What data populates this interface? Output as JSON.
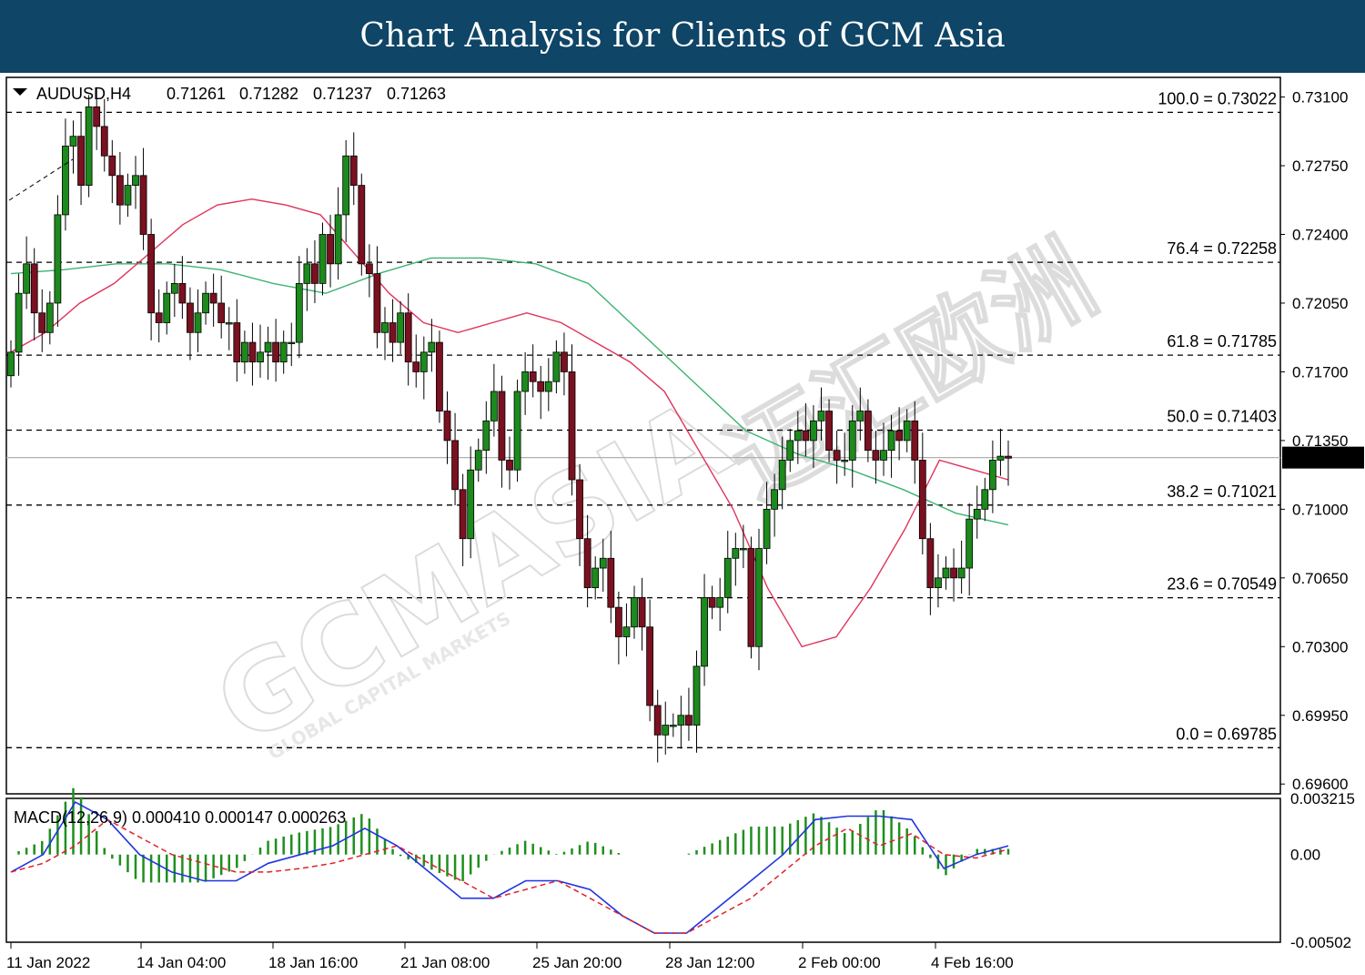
{
  "header": {
    "title": "Chart Analysis for Clients of GCM Asia"
  },
  "symbol_info": {
    "symbol": "AUDUSD,H4",
    "open": "0.71261",
    "high": "0.71282",
    "low": "0.71237",
    "close": "0.71263"
  },
  "current_price_label": "0.71263",
  "watermark": {
    "brand": "GCMASIA",
    "tagline": "GLOBAL CAPITAL MARKETS",
    "chinese": "迈汇欧洲"
  },
  "colors": {
    "bull": "#1c8a1c",
    "bear": "#7a1020",
    "ma_fast": "#e0335a",
    "ma_slow": "#3cb371",
    "macd_line": "#1f35e0",
    "signal_line": "#e0202a",
    "histogram": "#1f8f1f",
    "banner": "#0f4566"
  },
  "chart_data": {
    "type": "candlestick",
    "title": "AUDUSD,H4",
    "price_axis": {
      "range": [
        0.6955,
        0.732
      ],
      "ticks": [
        "0.73100",
        "0.72750",
        "0.72400",
        "0.72050",
        "0.71700",
        "0.71350",
        "0.71000",
        "0.70650",
        "0.70300",
        "0.69950",
        "0.69600"
      ]
    },
    "time_axis": {
      "labels": [
        "11 Jan 2022",
        "14 Jan 04:00",
        "18 Jan 16:00",
        "21 Jan 08:00",
        "25 Jan 20:00",
        "28 Jan 12:00",
        "2 Feb 00:00",
        "4 Feb 16:00"
      ]
    },
    "fibonacci": [
      {
        "level": "100.0",
        "price": 0.73022,
        "label": "100.0 = 0.73022"
      },
      {
        "level": "76.4",
        "price": 0.72258,
        "label": "76.4 = 0.72258"
      },
      {
        "level": "61.8",
        "price": 0.71785,
        "label": "61.8 = 0.71785"
      },
      {
        "level": "50.0",
        "price": 0.71403,
        "label": "50.0 = 0.71403"
      },
      {
        "level": "38.2",
        "price": 0.71021,
        "label": "38.2 = 0.71021"
      },
      {
        "level": "23.6",
        "price": 0.70549,
        "label": "23.6 = 0.70549"
      },
      {
        "level": "0.0",
        "price": 0.69785,
        "label": "0.0 = 0.69785"
      }
    ],
    "current_price": 0.71263,
    "closes": [
      0.718,
      0.721,
      0.7225,
      0.72,
      0.719,
      0.7205,
      0.725,
      0.7285,
      0.729,
      0.7265,
      0.7305,
      0.7295,
      0.728,
      0.727,
      0.7255,
      0.7265,
      0.727,
      0.724,
      0.72,
      0.7195,
      0.721,
      0.7215,
      0.7205,
      0.719,
      0.72,
      0.721,
      0.7205,
      0.7195,
      0.7195,
      0.7175,
      0.7185,
      0.7175,
      0.718,
      0.7185,
      0.7175,
      0.7185,
      0.7185,
      0.7215,
      0.7225,
      0.7215,
      0.724,
      0.7225,
      0.725,
      0.728,
      0.7265,
      0.7225,
      0.722,
      0.719,
      0.7195,
      0.7185,
      0.72,
      0.7175,
      0.717,
      0.718,
      0.7185,
      0.715,
      0.7135,
      0.711,
      0.7085,
      0.712,
      0.713,
      0.7145,
      0.716,
      0.7125,
      0.712,
      0.716,
      0.717,
      0.7165,
      0.716,
      0.7165,
      0.718,
      0.717,
      0.7115,
      0.7085,
      0.706,
      0.707,
      0.7075,
      0.705,
      0.7035,
      0.704,
      0.7055,
      0.704,
      0.7,
      0.6985,
      0.699,
      0.699,
      0.6995,
      0.699,
      0.702,
      0.7055,
      0.705,
      0.7055,
      0.7075,
      0.708,
      0.708,
      0.703,
      0.708,
      0.71,
      0.711,
      0.7125,
      0.7135,
      0.714,
      0.7135,
      0.7145,
      0.715,
      0.713,
      0.7125,
      0.7125,
      0.7145,
      0.715,
      0.713,
      0.7125,
      0.713,
      0.714,
      0.7135,
      0.7145,
      0.7125,
      0.7085,
      0.706,
      0.7065,
      0.707,
      0.7065,
      0.707,
      0.7095,
      0.71,
      0.711,
      0.7125,
      0.7127,
      0.7126
    ],
    "ma_fast": [
      0.718,
      0.719,
      0.7205,
      0.7215,
      0.723,
      0.7245,
      0.7255,
      0.7258,
      0.7255,
      0.725,
      0.723,
      0.721,
      0.7195,
      0.719,
      0.7195,
      0.72,
      0.7195,
      0.7185,
      0.7175,
      0.716,
      0.713,
      0.71,
      0.706,
      0.703,
      0.7035,
      0.706,
      0.709,
      0.7125,
      0.712,
      0.7115
    ],
    "ma_slow": [
      0.722,
      0.7222,
      0.7225,
      0.7225,
      0.7222,
      0.7215,
      0.721,
      0.722,
      0.7228,
      0.7228,
      0.7225,
      0.7215,
      0.719,
      0.7165,
      0.714,
      0.7128,
      0.712,
      0.711,
      0.7098,
      0.7092
    ],
    "macd": {
      "label": "MACD(12,26,9) 0.000410 0.000147 0.000263",
      "range": [
        -0.00502,
        0.003215
      ],
      "ticks": [
        "0.003215",
        "0.00",
        "-0.00502"
      ],
      "macd_line": [
        -0.001,
        0.0,
        0.003,
        0.002,
        0.0,
        -0.001,
        -0.0015,
        -0.0015,
        -0.0005,
        0.0,
        0.0005,
        0.0015,
        0.0005,
        -0.001,
        -0.0025,
        -0.0025,
        -0.0015,
        -0.0015,
        -0.002,
        -0.0035,
        -0.0045,
        -0.0045,
        -0.003,
        -0.0015,
        0.0,
        0.002,
        0.0022,
        0.0022,
        0.002,
        -0.0008,
        0.0,
        0.0005
      ],
      "signal_line": [
        -0.001,
        -0.0005,
        0.0005,
        0.002,
        0.001,
        0.0,
        -0.0005,
        -0.001,
        -0.001,
        -0.0008,
        -0.0005,
        0.0,
        0.0005,
        -0.0005,
        -0.0015,
        -0.0025,
        -0.002,
        -0.0015,
        -0.0025,
        -0.0035,
        -0.0045,
        -0.0045,
        -0.0035,
        -0.0025,
        -0.001,
        0.0005,
        0.0015,
        0.0005,
        0.0012,
        0.0,
        -0.0002,
        0.0003
      ]
    }
  }
}
